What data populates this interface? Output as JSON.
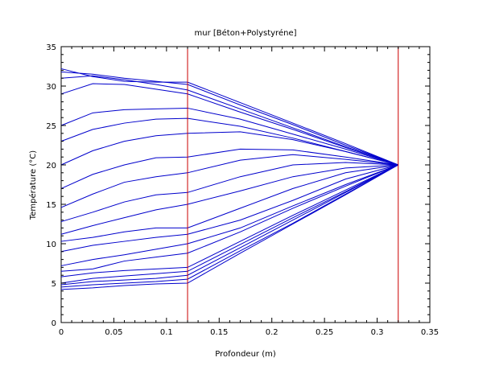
{
  "chart_data": {
    "type": "line",
    "title": "mur [Béton+Polystyréne]",
    "xlabel": "Profondeur (m)",
    "ylabel": "Température (°C)",
    "xlim": [
      0,
      0.35
    ],
    "ylim": [
      0,
      35
    ],
    "xticks": [
      0,
      0.05,
      0.1,
      0.15,
      0.2,
      0.25,
      0.3,
      0.35
    ],
    "xtick_labels": [
      "0",
      "0.05",
      "0.1",
      "0.15",
      "0.2",
      "0.25",
      "0.3",
      "0.35"
    ],
    "yticks": [
      0,
      5,
      10,
      15,
      20,
      25,
      30,
      35
    ],
    "ytick_labels": [
      "0",
      "5",
      "10",
      "15",
      "20",
      "25",
      "30",
      "35"
    ],
    "grid": false,
    "line_color": "#0000cc",
    "vline_color": "#cc0000",
    "vlines": [
      0.12,
      0.32
    ],
    "x": [
      0,
      0.03,
      0.06,
      0.09,
      0.12,
      0.17,
      0.22,
      0.27,
      0.32
    ],
    "series": [
      {
        "values": [
          32.2,
          31.2,
          30.6,
          30.5,
          30.5,
          27.9,
          25.3,
          22.7,
          20.0
        ]
      },
      {
        "values": [
          31.8,
          31.5,
          31.0,
          30.6,
          30.2,
          27.6,
          25.1,
          22.5,
          20.0
        ]
      },
      {
        "values": [
          31.0,
          31.3,
          30.8,
          30.2,
          29.5,
          27.1,
          24.7,
          22.3,
          20.0
        ]
      },
      {
        "values": [
          29.0,
          30.3,
          30.2,
          29.6,
          29.0,
          26.7,
          24.5,
          22.2,
          20.0
        ]
      },
      {
        "values": [
          25.0,
          26.6,
          27.0,
          27.1,
          27.2,
          25.8,
          23.9,
          22.0,
          20.0
        ]
      },
      {
        "values": [
          23.0,
          24.5,
          25.3,
          25.8,
          25.9,
          24.9,
          23.4,
          21.7,
          20.0
        ]
      },
      {
        "values": [
          20.0,
          21.8,
          23.0,
          23.7,
          24.0,
          24.2,
          23.2,
          21.7,
          20.0
        ]
      },
      {
        "values": [
          17.0,
          18.8,
          20.0,
          20.9,
          21.0,
          22.0,
          21.9,
          21.0,
          20.0
        ]
      },
      {
        "values": [
          14.6,
          16.3,
          17.8,
          18.5,
          19.0,
          20.6,
          21.3,
          20.7,
          20.0
        ]
      },
      {
        "values": [
          12.8,
          14.0,
          15.3,
          16.2,
          16.5,
          18.5,
          20.0,
          20.3,
          20.0
        ]
      },
      {
        "values": [
          11.2,
          12.3,
          13.3,
          14.3,
          15.0,
          16.7,
          18.5,
          19.6,
          20.0
        ]
      },
      {
        "values": [
          10.3,
          10.8,
          11.5,
          12.0,
          12.0,
          14.5,
          17.0,
          19.0,
          20.0
        ]
      },
      {
        "values": [
          9.0,
          9.8,
          10.3,
          10.8,
          11.2,
          13.0,
          15.5,
          18.2,
          20.0
        ]
      },
      {
        "values": [
          7.2,
          8.0,
          8.6,
          9.3,
          10.0,
          12.0,
          14.8,
          17.5,
          20.0
        ]
      },
      {
        "values": [
          6.5,
          6.8,
          7.8,
          8.3,
          8.8,
          11.5,
          14.5,
          17.3,
          20.0
        ]
      },
      {
        "values": [
          5.8,
          6.3,
          6.6,
          6.8,
          7.0,
          10.3,
          13.6,
          16.8,
          20.0
        ]
      },
      {
        "values": [
          5.0,
          5.6,
          5.9,
          6.2,
          6.5,
          9.9,
          13.3,
          16.6,
          20.0
        ]
      },
      {
        "values": [
          4.8,
          5.2,
          5.4,
          5.6,
          6.0,
          9.5,
          13.0,
          16.5,
          20.0
        ]
      },
      {
        "values": [
          4.5,
          4.8,
          5.0,
          5.2,
          5.5,
          9.1,
          12.6,
          16.3,
          20.0
        ]
      },
      {
        "values": [
          4.2,
          4.4,
          4.7,
          4.9,
          5.0,
          8.8,
          12.5,
          16.2,
          20.0
        ]
      }
    ]
  }
}
